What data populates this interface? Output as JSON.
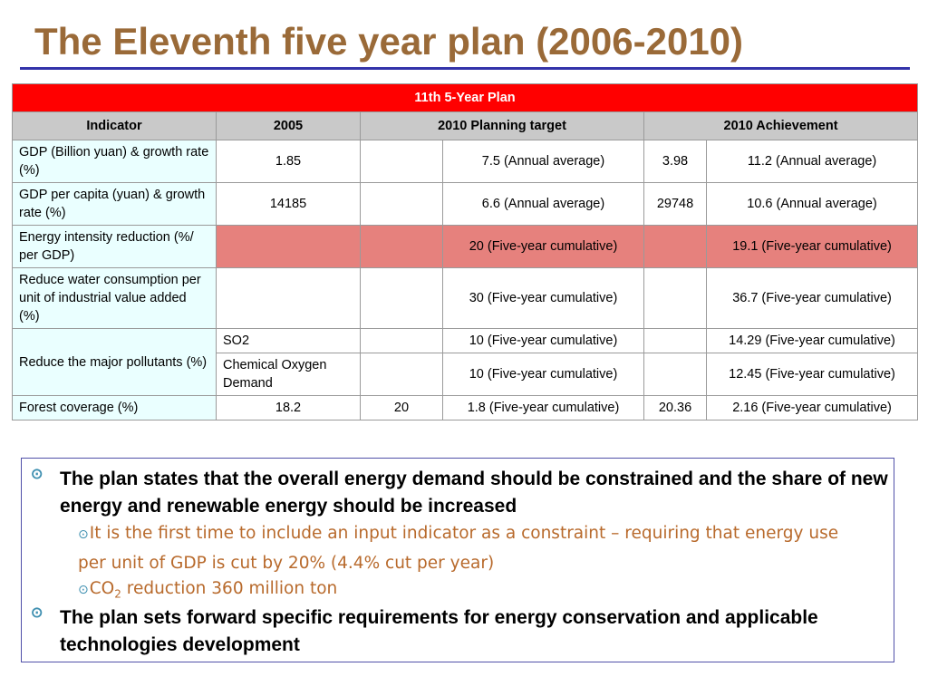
{
  "title": "The Eleventh five year plan (2006-2010)",
  "table": {
    "banner": "11th 5-Year Plan",
    "headers": [
      "Indicator",
      "2005",
      "2010 Planning target",
      "2010 Achievement"
    ],
    "rows": {
      "gdp": {
        "indicator": "GDP (Billion yuan) & growth rate (%)",
        "v2005": "1.85",
        "target_a": "",
        "target_b": "7.5 (Annual average)",
        "achieve_a": "3.98",
        "achieve_b": "11.2 (Annual average)"
      },
      "gdp_pc": {
        "indicator": "GDP per capita (yuan) & growth rate (%)",
        "v2005": "14185",
        "target_a": "",
        "target_b": "6.6 (Annual average)",
        "achieve_a": "29748",
        "achieve_b": "10.6 (Annual average)"
      },
      "energy": {
        "indicator": "Energy intensity reduction (%/ per GDP)",
        "v2005": "",
        "target_a": "",
        "target_b": "20 (Five-year cumulative)",
        "achieve_a": "",
        "achieve_b": "19.1 (Five-year cumulative)"
      },
      "water": {
        "indicator": "Reduce water consumption per unit of industrial value added (%)",
        "v2005": "",
        "target_a": "",
        "target_b": "30 (Five-year cumulative)",
        "achieve_a": "",
        "achieve_b": "36.7 (Five-year cumulative)"
      },
      "pollutants": {
        "indicator": "Reduce the major pollutants (%)",
        "so2": {
          "label": "SO2",
          "target_a": "",
          "target_b": "10 (Five-year cumulative)",
          "achieve_a": "",
          "achieve_b": "14.29 (Five-year cumulative)"
        },
        "cod": {
          "label": "Chemical Oxygen Demand",
          "target_a": "",
          "target_b": "10 (Five-year cumulative)",
          "achieve_a": "",
          "achieve_b": "12.45 (Five-year cumulative)"
        }
      },
      "forest": {
        "indicator": "Forest coverage (%)",
        "v2005": "18.2",
        "target_a": "20",
        "target_b": "1.8 (Five-year cumulative)",
        "achieve_a": "20.36",
        "achieve_b": "2.16 (Five-year cumulative)"
      }
    }
  },
  "bullets": {
    "b1": "The plan states that the overall energy demand should be constrained and the share of new energy and renewable energy should be increased",
    "b1_sub1": "It is the first time to include an input indicator as a constraint – requiring that energy use per unit of GDP is cut by 20% (4.4% cut per year)",
    "b1_sub2_prefix": "CO",
    "b1_sub2_subscript": "2",
    "b1_sub2_suffix": " reduction 360 million ton",
    "b2": "The plan sets forward specific requirements for energy conservation and applicable technologies development"
  },
  "colors": {
    "title": "#9a6a38",
    "banner": "#ff0000",
    "header_bg": "#c9c9c9",
    "indicator_bg": "#eaffff",
    "highlight": "#e6817d",
    "rule": "#3333aa",
    "sub_bullet_text": "#b86a2c"
  },
  "icons": {
    "bullet": "circled-dot-bullet-icon"
  }
}
